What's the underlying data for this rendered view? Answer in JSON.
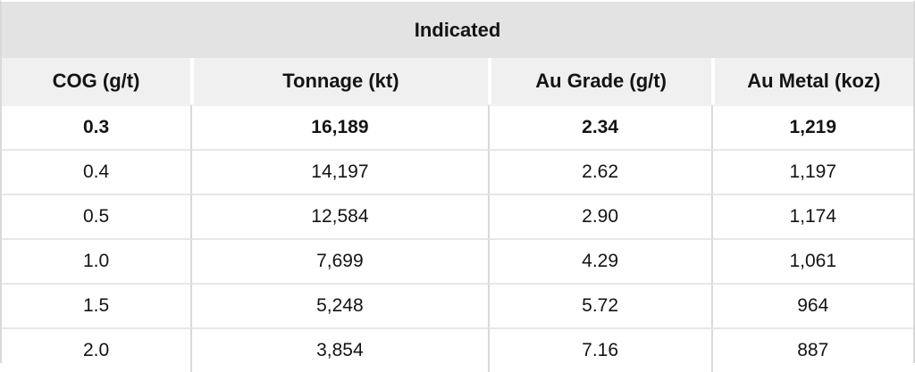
{
  "chart_data": {
    "type": "table",
    "title": "Indicated",
    "columns": [
      "COG (g/t)",
      "Tonnage (kt)",
      "Au Grade (g/t)",
      "Au Metal (koz)"
    ],
    "rows": [
      [
        "0.3",
        "16,189",
        "2.34",
        "1,219"
      ],
      [
        "0.4",
        "14,197",
        "2.62",
        "1,197"
      ],
      [
        "0.5",
        "12,584",
        "2.90",
        "1,174"
      ],
      [
        "1.0",
        "7,699",
        "4.29",
        "1,061"
      ],
      [
        "1.5",
        "5,248",
        "5.72",
        "964"
      ],
      [
        "2.0",
        "3,854",
        "7.16",
        "887"
      ]
    ],
    "highlighted_row_index": 0,
    "layout": {
      "title_spans_all_columns": true,
      "all_cells_centered": true,
      "grid": "light horizontal and vertical separators in body, white separators in header row"
    }
  },
  "colors": {
    "banner_bg": "#e3e3e3",
    "header_bg": "#f0f0f0",
    "header_separator": "#ffffff",
    "row_bg": "#ffffff",
    "vertical_grid_line": "#d9d9d9",
    "horizontal_grid_line": "#e7e7e7",
    "outer_border": "#d9d9d9",
    "text": "#141414"
  }
}
